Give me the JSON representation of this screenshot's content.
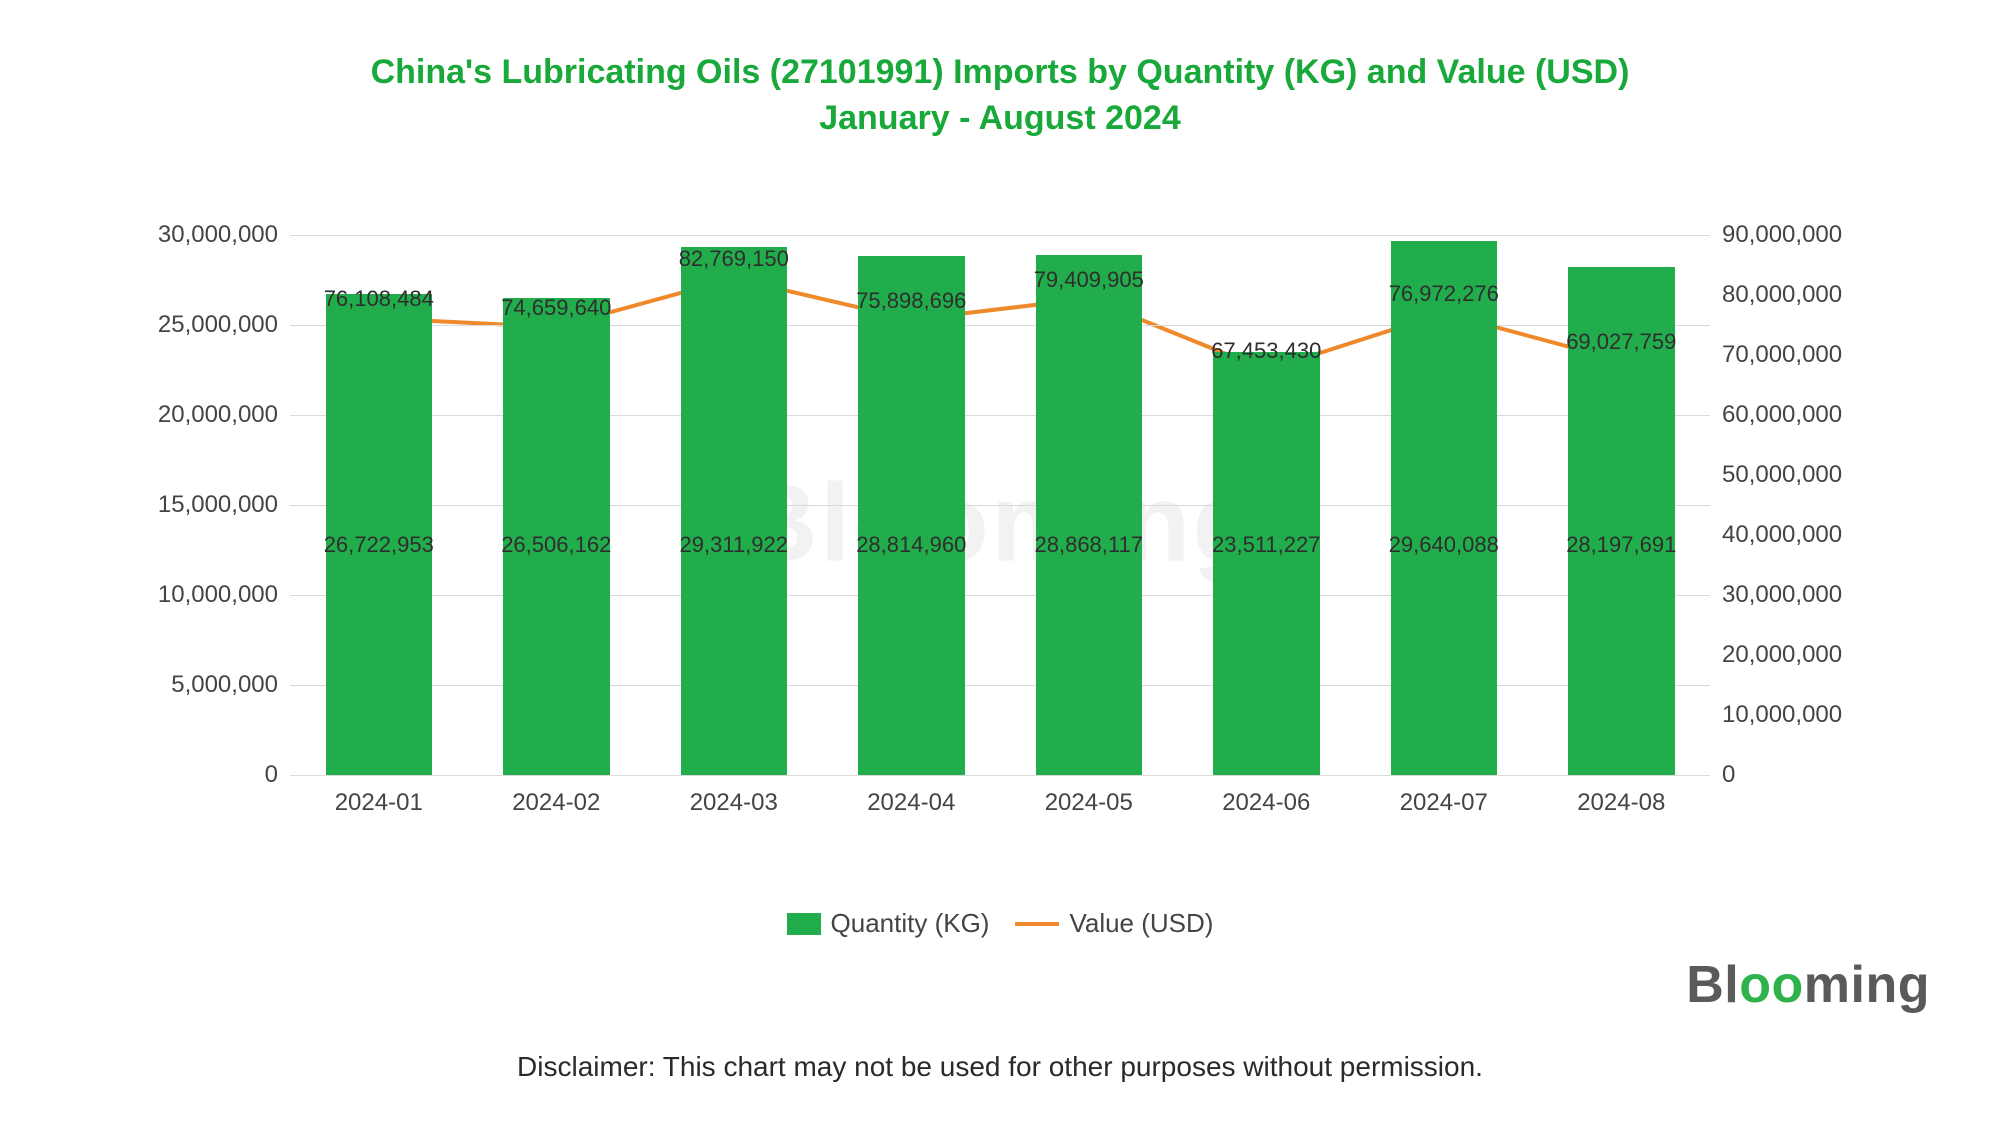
{
  "title": {
    "line1": "China's Lubricating Oils (27101991) Imports by Quantity (KG) and Value (USD)",
    "line2": "January - August 2024",
    "color": "#19a83a",
    "fontsize": 34
  },
  "chart": {
    "type": "bar+line",
    "categories": [
      "2024-01",
      "2024-02",
      "2024-03",
      "2024-04",
      "2024-05",
      "2024-06",
      "2024-07",
      "2024-08"
    ],
    "bar_series": {
      "name": "Quantity (KG)",
      "values": [
        26722953,
        26506162,
        29311922,
        28814960,
        28868117,
        23511227,
        29640088,
        28197691
      ],
      "color": "#21ad4b",
      "bar_width_ratio": 0.6
    },
    "line_series": {
      "name": "Value (USD)",
      "values": [
        76108484,
        74659640,
        82769150,
        75898696,
        79409905,
        67453430,
        76972276,
        69027759
      ],
      "color": "#ee8a2b",
      "line_width": 4,
      "marker": "circle",
      "marker_size": 5
    },
    "left_axis": {
      "min": 0,
      "max": 30000000,
      "step": 5000000
    },
    "right_axis": {
      "min": 0,
      "max": 90000000,
      "step": 10000000
    },
    "grid_color": "#d9d9d9",
    "background": "#ffffff",
    "tick_fontsize": 24,
    "data_label_fontsize": 22,
    "data_label_color": "#2e2e2e"
  },
  "legend": {
    "items": [
      {
        "label": "Quantity (KG)",
        "type": "bar",
        "color": "#21ad4b"
      },
      {
        "label": "Value (USD)",
        "type": "line",
        "color": "#ee8a2b"
      }
    ],
    "fontsize": 26
  },
  "watermark": "Blooming",
  "brand": {
    "prefix": "Bl",
    "accent": "oo",
    "suffix": "ming"
  },
  "disclaimer": "Disclaimer: This chart may not be used for other purposes without permission."
}
